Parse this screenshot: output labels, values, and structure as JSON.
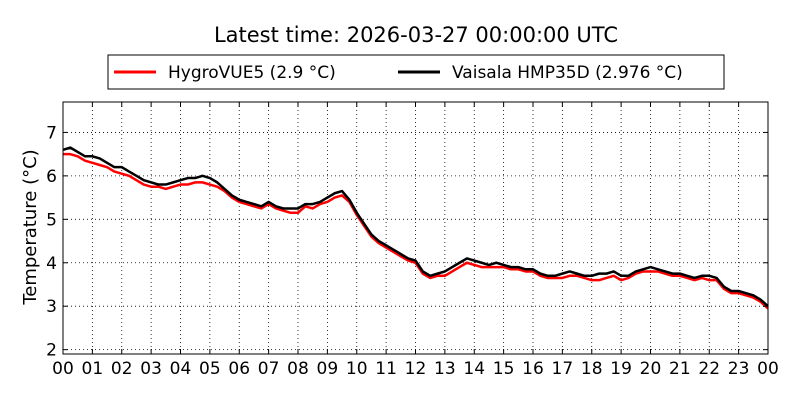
{
  "chart_data": {
    "type": "line",
    "title": "Latest time: 2026-03-27 00:00:00 UTC",
    "xlabel": "",
    "ylabel": "Temperature (°C)",
    "xlim": [
      0,
      24
    ],
    "ylim": [
      1.9,
      7.7
    ],
    "x_ticks": [
      0,
      1,
      2,
      3,
      4,
      5,
      6,
      7,
      8,
      9,
      10,
      11,
      12,
      13,
      14,
      15,
      16,
      17,
      18,
      19,
      20,
      21,
      22,
      23,
      24
    ],
    "x_tick_labels": [
      "00",
      "01",
      "02",
      "03",
      "04",
      "05",
      "06",
      "07",
      "08",
      "09",
      "10",
      "11",
      "12",
      "13",
      "14",
      "15",
      "16",
      "17",
      "18",
      "19",
      "20",
      "21",
      "22",
      "23",
      "00"
    ],
    "y_ticks": [
      2,
      3,
      4,
      5,
      6,
      7
    ],
    "y_tick_labels": [
      "2",
      "3",
      "4",
      "5",
      "6",
      "7"
    ],
    "grid": true,
    "legend_position": "top",
    "series": [
      {
        "name": "HygroVUE5 (2.9 °C)",
        "color": "#ff0000",
        "x": [
          0,
          0.25,
          0.5,
          0.75,
          1,
          1.25,
          1.5,
          1.75,
          2,
          2.25,
          2.5,
          2.75,
          3,
          3.25,
          3.5,
          3.75,
          4,
          4.25,
          4.5,
          4.75,
          5,
          5.25,
          5.5,
          5.75,
          6,
          6.25,
          6.5,
          6.75,
          7,
          7.25,
          7.5,
          7.75,
          8,
          8.25,
          8.5,
          8.75,
          9,
          9.25,
          9.5,
          9.75,
          10,
          10.25,
          10.5,
          10.75,
          11,
          11.25,
          11.5,
          11.75,
          12,
          12.25,
          12.5,
          12.75,
          13,
          13.25,
          13.5,
          13.75,
          14,
          14.25,
          14.5,
          14.75,
          15,
          15.25,
          15.5,
          15.75,
          16,
          16.25,
          16.5,
          16.75,
          17,
          17.25,
          17.5,
          17.75,
          18,
          18.25,
          18.5,
          18.75,
          19,
          19.25,
          19.5,
          19.75,
          20,
          20.25,
          20.5,
          20.75,
          21,
          21.25,
          21.5,
          21.75,
          22,
          22.25,
          22.5,
          22.75,
          23,
          23.25,
          23.5,
          23.75,
          24
        ],
        "values": [
          6.5,
          6.5,
          6.45,
          6.35,
          6.3,
          6.25,
          6.2,
          6.1,
          6.05,
          6.0,
          5.9,
          5.8,
          5.75,
          5.75,
          5.7,
          5.75,
          5.8,
          5.8,
          5.85,
          5.85,
          5.8,
          5.75,
          5.65,
          5.5,
          5.4,
          5.35,
          5.3,
          5.25,
          5.35,
          5.25,
          5.2,
          5.15,
          5.15,
          5.3,
          5.25,
          5.35,
          5.4,
          5.5,
          5.55,
          5.4,
          5.1,
          4.85,
          4.6,
          4.45,
          4.35,
          4.25,
          4.15,
          4.05,
          4.0,
          3.75,
          3.65,
          3.7,
          3.7,
          3.8,
          3.9,
          4.0,
          3.95,
          3.9,
          3.9,
          3.9,
          3.9,
          3.85,
          3.85,
          3.8,
          3.8,
          3.7,
          3.65,
          3.65,
          3.65,
          3.7,
          3.7,
          3.65,
          3.6,
          3.6,
          3.65,
          3.7,
          3.6,
          3.65,
          3.75,
          3.8,
          3.8,
          3.8,
          3.75,
          3.7,
          3.7,
          3.65,
          3.6,
          3.65,
          3.6,
          3.6,
          3.4,
          3.3,
          3.3,
          3.25,
          3.2,
          3.1,
          2.95
        ]
      },
      {
        "name": "Vaisala HMP35D (2.976 °C)",
        "color": "#000000",
        "x": [
          0,
          0.25,
          0.5,
          0.75,
          1,
          1.25,
          1.5,
          1.75,
          2,
          2.25,
          2.5,
          2.75,
          3,
          3.25,
          3.5,
          3.75,
          4,
          4.25,
          4.5,
          4.75,
          5,
          5.25,
          5.5,
          5.75,
          6,
          6.25,
          6.5,
          6.75,
          7,
          7.25,
          7.5,
          7.75,
          8,
          8.25,
          8.5,
          8.75,
          9,
          9.25,
          9.5,
          9.75,
          10,
          10.25,
          10.5,
          10.75,
          11,
          11.25,
          11.5,
          11.75,
          12,
          12.25,
          12.5,
          12.75,
          13,
          13.25,
          13.5,
          13.75,
          14,
          14.25,
          14.5,
          14.75,
          15,
          15.25,
          15.5,
          15.75,
          16,
          16.25,
          16.5,
          16.75,
          17,
          17.25,
          17.5,
          17.75,
          18,
          18.25,
          18.5,
          18.75,
          19,
          19.25,
          19.5,
          19.75,
          20,
          20.25,
          20.5,
          20.75,
          21,
          21.25,
          21.5,
          21.75,
          22,
          22.25,
          22.5,
          22.75,
          23,
          23.25,
          23.5,
          23.75,
          24
        ],
        "values": [
          6.6,
          6.65,
          6.55,
          6.45,
          6.45,
          6.4,
          6.3,
          6.2,
          6.2,
          6.1,
          6.0,
          5.9,
          5.85,
          5.8,
          5.8,
          5.85,
          5.9,
          5.95,
          5.95,
          6.0,
          5.95,
          5.85,
          5.7,
          5.55,
          5.45,
          5.4,
          5.35,
          5.3,
          5.4,
          5.3,
          5.25,
          5.25,
          5.25,
          5.35,
          5.35,
          5.4,
          5.5,
          5.6,
          5.65,
          5.45,
          5.15,
          4.9,
          4.65,
          4.5,
          4.4,
          4.3,
          4.2,
          4.1,
          4.05,
          3.8,
          3.7,
          3.75,
          3.8,
          3.9,
          4.0,
          4.1,
          4.05,
          4.0,
          3.95,
          4.0,
          3.95,
          3.9,
          3.9,
          3.85,
          3.85,
          3.75,
          3.7,
          3.7,
          3.75,
          3.8,
          3.75,
          3.7,
          3.7,
          3.75,
          3.75,
          3.8,
          3.7,
          3.7,
          3.8,
          3.85,
          3.9,
          3.85,
          3.8,
          3.75,
          3.75,
          3.7,
          3.65,
          3.7,
          3.7,
          3.65,
          3.45,
          3.35,
          3.35,
          3.3,
          3.25,
          3.15,
          3.0
        ]
      }
    ]
  }
}
